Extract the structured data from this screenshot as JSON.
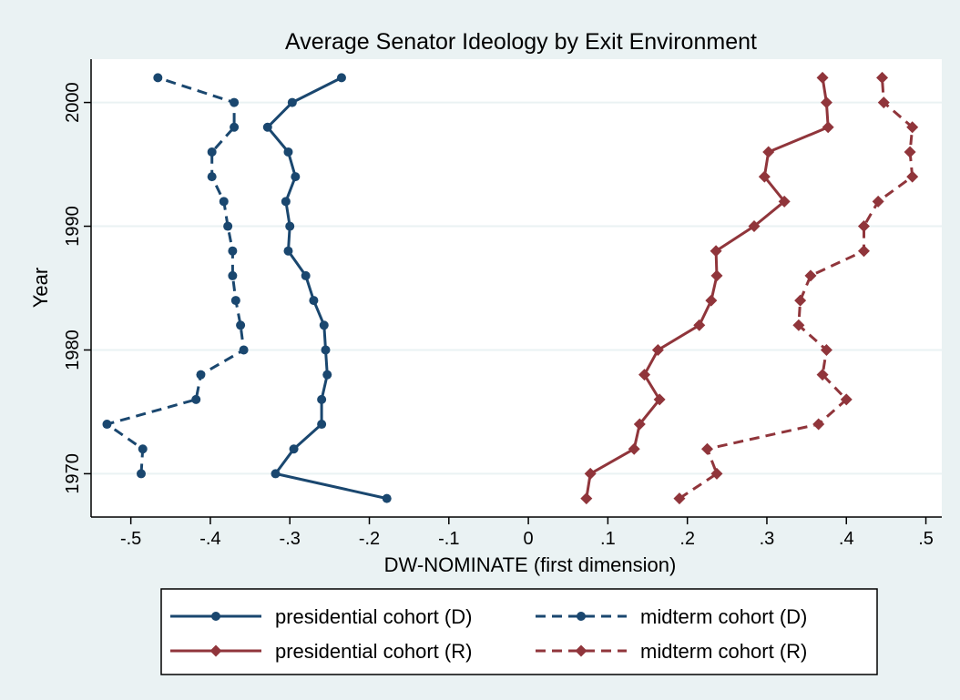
{
  "chart_data": {
    "type": "line",
    "title": "Average Senator Ideology by Exit Environment",
    "xlabel": "DW-NOMINATE (first dimension)",
    "ylabel": "Year",
    "xlim": [
      -0.55,
      0.52
    ],
    "ylim": [
      1966.5,
      2003.5
    ],
    "x_ticks": [
      -0.5,
      -0.4,
      -0.3,
      -0.2,
      -0.1,
      0,
      0.1,
      0.2,
      0.3,
      0.4,
      0.5
    ],
    "x_tick_labels": [
      "-.5",
      "-.4",
      "-.3",
      "-.2",
      "-.1",
      "0",
      ".1",
      ".2",
      ".3",
      ".4",
      ".5"
    ],
    "y_ticks": [
      1970,
      1980,
      1990,
      2000
    ],
    "y_tick_labels": [
      "1970",
      "1980",
      "1990",
      "2000"
    ],
    "grid": "horizontal",
    "legend_position": "bottom",
    "colors": {
      "democrat": "#1a476f",
      "republican": "#90353b",
      "plot_bg": "#ffffff",
      "page_bg": "#eaf2f3",
      "grid": "#eaf2f3"
    },
    "series": [
      {
        "name": "presidential cohort (D)",
        "party": "D",
        "style": "solid",
        "marker": "circle",
        "points": [
          [
            -0.178,
            1968
          ],
          [
            -0.318,
            1970
          ],
          [
            -0.295,
            1972
          ],
          [
            -0.26,
            1974
          ],
          [
            -0.26,
            1976
          ],
          [
            -0.253,
            1978
          ],
          [
            -0.255,
            1980
          ],
          [
            -0.257,
            1982
          ],
          [
            -0.27,
            1984
          ],
          [
            -0.28,
            1986
          ],
          [
            -0.302,
            1988
          ],
          [
            -0.3,
            1990
          ],
          [
            -0.305,
            1992
          ],
          [
            -0.293,
            1994
          ],
          [
            -0.302,
            1996
          ],
          [
            -0.328,
            1998
          ],
          [
            -0.297,
            2000
          ],
          [
            -0.235,
            2002
          ]
        ]
      },
      {
        "name": "midterm cohort (D)",
        "party": "D",
        "style": "dash",
        "marker": "circle",
        "points": [
          [
            -0.487,
            1970
          ],
          [
            -0.485,
            1972
          ],
          [
            -0.53,
            1974
          ],
          [
            -0.418,
            1976
          ],
          [
            -0.412,
            1978
          ],
          [
            -0.358,
            1980
          ],
          [
            -0.362,
            1982
          ],
          [
            -0.368,
            1984
          ],
          [
            -0.372,
            1986
          ],
          [
            -0.372,
            1988
          ],
          [
            -0.378,
            1990
          ],
          [
            -0.383,
            1992
          ],
          [
            -0.398,
            1994
          ],
          [
            -0.398,
            1996
          ],
          [
            -0.37,
            1998
          ],
          [
            -0.37,
            2000
          ],
          [
            -0.466,
            2002
          ]
        ]
      },
      {
        "name": "presidential cohort (R)",
        "party": "R",
        "style": "solid",
        "marker": "diamond",
        "points": [
          [
            0.073,
            1968
          ],
          [
            0.078,
            1970
          ],
          [
            0.133,
            1972
          ],
          [
            0.14,
            1974
          ],
          [
            0.165,
            1976
          ],
          [
            0.146,
            1978
          ],
          [
            0.163,
            1980
          ],
          [
            0.215,
            1982
          ],
          [
            0.23,
            1984
          ],
          [
            0.237,
            1986
          ],
          [
            0.236,
            1988
          ],
          [
            0.284,
            1990
          ],
          [
            0.322,
            1992
          ],
          [
            0.297,
            1994
          ],
          [
            0.302,
            1996
          ],
          [
            0.377,
            1998
          ],
          [
            0.375,
            2000
          ],
          [
            0.37,
            2002
          ]
        ]
      },
      {
        "name": "midterm cohort (R)",
        "party": "R",
        "style": "dash",
        "marker": "diamond",
        "points": [
          [
            0.19,
            1968
          ],
          [
            0.237,
            1970
          ],
          [
            0.225,
            1972
          ],
          [
            0.365,
            1974
          ],
          [
            0.4,
            1976
          ],
          [
            0.37,
            1978
          ],
          [
            0.375,
            1980
          ],
          [
            0.34,
            1982
          ],
          [
            0.342,
            1984
          ],
          [
            0.355,
            1986
          ],
          [
            0.422,
            1988
          ],
          [
            0.422,
            1990
          ],
          [
            0.44,
            1992
          ],
          [
            0.483,
            1994
          ],
          [
            0.48,
            1996
          ],
          [
            0.483,
            1998
          ],
          [
            0.447,
            2000
          ],
          [
            0.445,
            2002
          ]
        ]
      }
    ]
  }
}
